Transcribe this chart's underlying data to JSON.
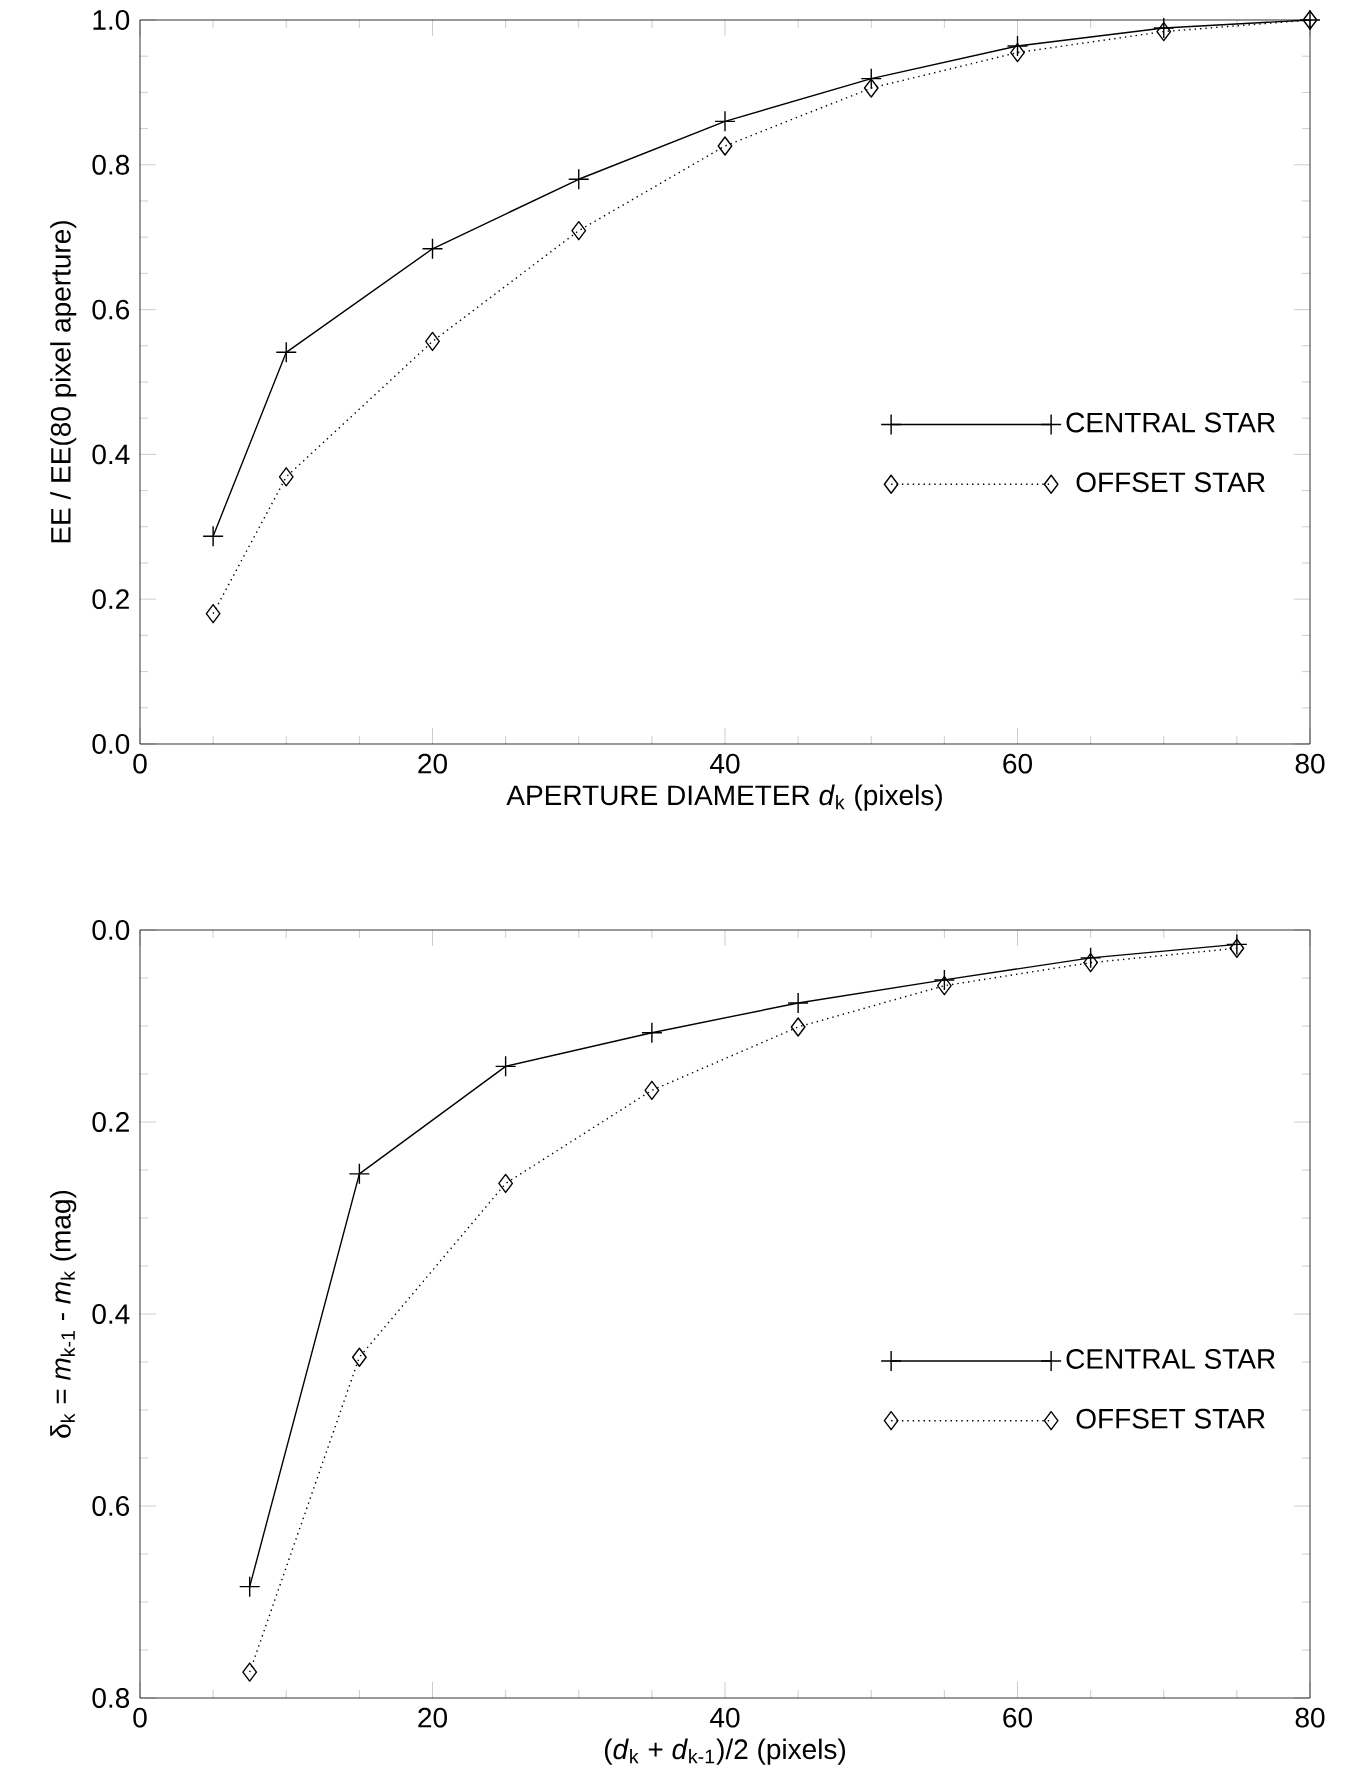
{
  "chart_data": [
    {
      "type": "line",
      "xlabel": "APERTURE DIAMETER *d*$_{k}$ (pixels)",
      "ylabel": "EE / EE(80 pixel aperture)",
      "xlim": [
        0,
        80
      ],
      "ylim": [
        0,
        1
      ],
      "xticks": [
        0,
        20,
        40,
        60,
        80
      ],
      "yticks": [
        {
          "value": 0,
          "label": "0.0"
        },
        {
          "value": 0.2,
          "label": "0.2"
        },
        {
          "value": 0.4,
          "label": "0.4"
        },
        {
          "value": 0.6,
          "label": "0.6"
        },
        {
          "value": 0.8,
          "label": "0.8"
        },
        {
          "value": 1,
          "label": "1.0"
        }
      ],
      "legend": "right",
      "x": [
        5,
        10,
        20,
        30,
        40,
        50,
        60,
        70,
        80
      ],
      "series": [
        {
          "name": "CENTRAL STAR",
          "color": "#000000",
          "marker": "cross",
          "line_style": "solid",
          "values": [
            0.287,
            0.541,
            0.684,
            0.78,
            0.86,
            0.919,
            0.964,
            0.989,
            1.0
          ]
        },
        {
          "name": "OFFSET STAR",
          "color": "#000000",
          "marker": "diamond",
          "line_style": "dotted",
          "values": [
            0.18,
            0.369,
            0.556,
            0.709,
            0.826,
            0.906,
            0.955,
            0.984,
            1.0
          ]
        }
      ]
    },
    {
      "type": "line",
      "xlabel": "(*d*$_{k}$ + *d*$_{k-1}$)/2 (pixels)",
      "ylabel": "δ$_{k}$ = *m*$_{k-1}$ - *m*$_{k}$ (mag)",
      "xlim": [
        0,
        80
      ],
      "ylim": [
        0.8,
        0
      ],
      "xticks": [
        0,
        20,
        40,
        60,
        80
      ],
      "yticks": [
        {
          "value": 0,
          "label": "0.0"
        },
        {
          "value": 0.2,
          "label": "0.2"
        },
        {
          "value": 0.4,
          "label": "0.4"
        },
        {
          "value": 0.6,
          "label": "0.6"
        },
        {
          "value": 0.8,
          "label": "0.8"
        }
      ],
      "legend": "right",
      "x": [
        7.5,
        15,
        25,
        35,
        45,
        55,
        65,
        75
      ],
      "series": [
        {
          "name": "CENTRAL STAR",
          "color": "#000000",
          "marker": "cross",
          "line_style": "solid",
          "values": [
            0.684,
            0.254,
            0.142,
            0.107,
            0.076,
            0.052,
            0.029,
            0.015
          ]
        },
        {
          "name": "OFFSET STAR",
          "color": "#000000",
          "marker": "diamond",
          "line_style": "dotted",
          "values": [
            0.773,
            0.445,
            0.264,
            0.167,
            0.101,
            0.058,
            0.034,
            0.019
          ]
        }
      ]
    }
  ]
}
